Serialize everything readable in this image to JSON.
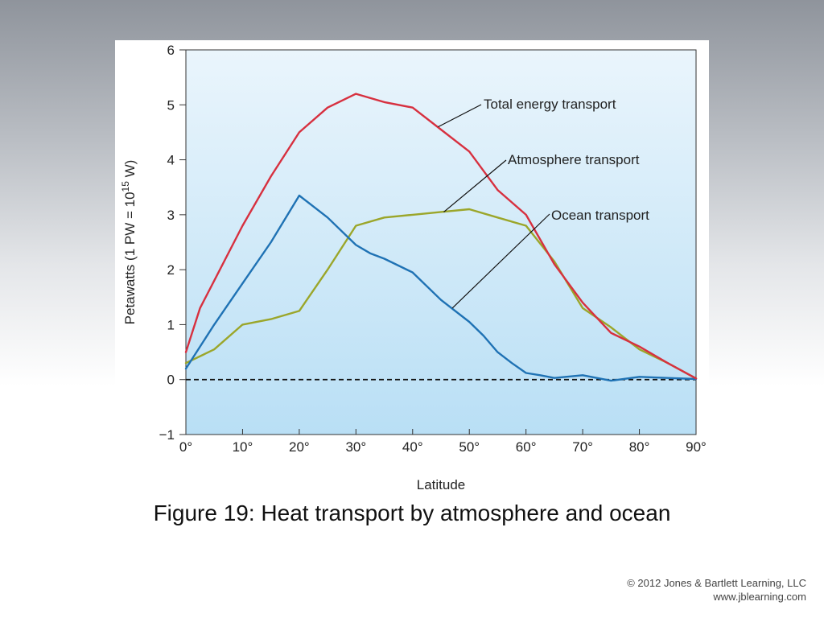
{
  "caption": "Figure 19: Heat transport by atmosphere and ocean",
  "copyright": {
    "line1": "© 2012 Jones & Bartlett Learning, LLC",
    "line2": "www.jblearning.com"
  },
  "colors": {
    "total": "#d7303f",
    "atmosphere": "#9ba62a",
    "ocean": "#1f72b4",
    "plot_bg_top": "#eaf5fc",
    "plot_bg_bottom": "#b9dff5"
  },
  "chart_data": {
    "type": "line",
    "title": "",
    "xlabel": "Latitude",
    "ylabel_parts": {
      "main": "Petawatts (1 PW = 10",
      "sup": "15",
      "tail": " W)"
    },
    "xlim": [
      0,
      90
    ],
    "ylim": [
      -1,
      6
    ],
    "grid": false,
    "legend": "none",
    "zero_line": "dashed",
    "x_ticks": [
      0,
      10,
      20,
      30,
      40,
      50,
      60,
      70,
      80,
      90
    ],
    "x_tick_labels": [
      "0°",
      "10°",
      "20°",
      "30°",
      "40°",
      "50°",
      "60°",
      "70°",
      "80°",
      "90°"
    ],
    "y_ticks": [
      -1,
      0,
      1,
      2,
      3,
      4,
      5,
      6
    ],
    "y_tick_labels": [
      "−1",
      "0",
      "1",
      "2",
      "3",
      "4",
      "5",
      "6"
    ],
    "series": [
      {
        "key": "total",
        "name": "Total energy transport",
        "x": [
          0,
          2.5,
          5,
          10,
          15,
          20,
          25,
          30,
          35,
          40,
          45,
          50,
          55,
          60,
          65,
          70,
          75,
          80,
          85,
          90
        ],
        "y": [
          0.5,
          1.3,
          1.8,
          2.8,
          3.7,
          4.5,
          4.95,
          5.2,
          5.05,
          4.95,
          4.55,
          4.15,
          3.45,
          3.0,
          2.1,
          1.4,
          0.85,
          0.6,
          0.3,
          0.02
        ]
      },
      {
        "key": "atmosphere",
        "name": "Atmosphere transport",
        "x": [
          0,
          5,
          10,
          15,
          20,
          25,
          30,
          35,
          40,
          45,
          50,
          55,
          60,
          65,
          70,
          75,
          80,
          85,
          90
        ],
        "y": [
          0.3,
          0.55,
          1.0,
          1.1,
          1.25,
          2.0,
          2.8,
          2.95,
          3.0,
          3.05,
          3.1,
          2.95,
          2.8,
          2.15,
          1.3,
          0.95,
          0.55,
          0.3,
          0.02
        ]
      },
      {
        "key": "ocean",
        "name": "Ocean transport",
        "x": [
          0,
          5,
          10,
          15,
          20,
          25,
          30,
          32.5,
          35,
          40,
          45,
          50,
          52.5,
          55,
          57.5,
          60,
          62.5,
          65,
          70,
          75,
          80,
          85,
          90
        ],
        "y": [
          0.2,
          1.0,
          1.75,
          2.5,
          3.35,
          2.95,
          2.45,
          2.3,
          2.2,
          1.95,
          1.45,
          1.05,
          0.8,
          0.5,
          0.3,
          0.12,
          0.08,
          0.03,
          0.08,
          -0.02,
          0.05,
          0.03,
          0.01
        ]
      }
    ],
    "annotations": [
      {
        "text": "Total energy transport",
        "target_series": "total",
        "target_x": 44.5,
        "target_y": 4.6
      },
      {
        "text": "Atmosphere transport",
        "target_series": "atmosphere",
        "target_x": 45.5,
        "target_y": 3.05
      },
      {
        "text": "Ocean transport",
        "target_series": "ocean",
        "target_x": 47,
        "target_y": 1.3
      }
    ]
  }
}
